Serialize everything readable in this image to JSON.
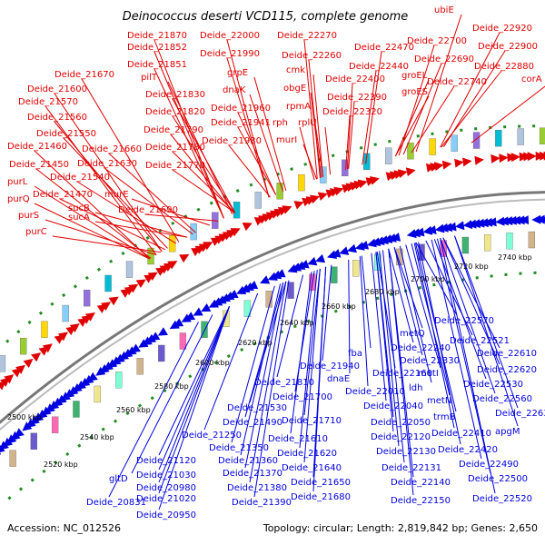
{
  "title": "Deinococcus deserti VCD115, complete genome",
  "footer": {
    "accession": "Accession: NC_012526",
    "summary": "Topology: circular; Length: 2,819,842 bp; Genes: 2,650"
  },
  "colors": {
    "forward": "#e00000",
    "reverse": "#0000e0",
    "backbone": "#888888",
    "ruler": "#228b22"
  },
  "ticks": [
    "2500 kbp",
    "2520 kbp",
    "2540 kbp",
    "2560 kbp",
    "2580 kbp",
    "2600 kbp",
    "2620 kbp",
    "2640 kbp",
    "2660 kbp",
    "2680 kbp",
    "2700 kbp",
    "2720 kbp",
    "2740 kbp"
  ],
  "top_labels": [
    "Deide_21870",
    "Deide_21852",
    "Deide_21851",
    "pilT",
    "Deide_21830",
    "Deide_21820",
    "Deide_21790",
    "Deide_21780",
    "Deide_21770",
    "Deide_21690",
    "Deide_21670",
    "Deide_21600",
    "Deide_21570",
    "Deide_21560",
    "Deide_21550",
    "Deide_21660",
    "Deide_21460",
    "Deide_21630",
    "Deide_21450",
    "Deide_21540",
    "purL",
    "Deide_21470",
    "purQ",
    "sucB",
    "murE",
    "purS",
    "sucA",
    "purC",
    "Deide_22000",
    "Deide_21990",
    "grpE",
    "dnaK",
    "Deide_21960",
    "Deide_21941",
    "Deide_21930",
    "Deide_22270",
    "Deide_22260",
    "cmk",
    "obgE",
    "rpmA",
    "rph",
    "rplU",
    "murI",
    "Deide_22470",
    "Deide_22440",
    "Deide_22400",
    "Deide_22390",
    "Deide_22320",
    "ubiE",
    "Deide_22700",
    "Deide_22690",
    "groEL",
    "groES",
    "Deide_22740",
    "Deide_22920",
    "Deide_22900",
    "Deide_22880",
    "corA"
  ],
  "bottom_labels": [
    "Deide_21940",
    "Deide_21810",
    "Deide_21700",
    "Deide_21530",
    "Deide_21490",
    "Deide_21710",
    "Deide_21250",
    "Deide_21350",
    "Deide_21610",
    "Deide_21120",
    "Deide_21360",
    "Deide_21620",
    "Deide_21640",
    "Deide_21370",
    "Deide_21030",
    "gltD",
    "Deide_20980",
    "Deide_21380",
    "Deide_21650",
    "Deide_21020",
    "Deide_20831",
    "Deide_21390",
    "Deide_21680",
    "Deide_20950",
    "metQ",
    "fba",
    "dnaE",
    "Deide_22010",
    "Deide_22040",
    "Deide_22050",
    "Deide_22240",
    "Deide_22330",
    "Deide_22160",
    "metI",
    "ldh",
    "metN",
    "trmB",
    "Deide_22570",
    "Deide_22521",
    "Deide_22610",
    "Deide_22620",
    "Deide_22530",
    "Deide_22560",
    "Deide_22630",
    "apgM",
    "Deide_22410",
    "Deide_22420",
    "Deide_22490",
    "Deide_22500",
    "Deide_22520",
    "Deide_22120",
    "Deide_22130",
    "Deide_22131",
    "Deide_22140",
    "Deide_22150"
  ]
}
